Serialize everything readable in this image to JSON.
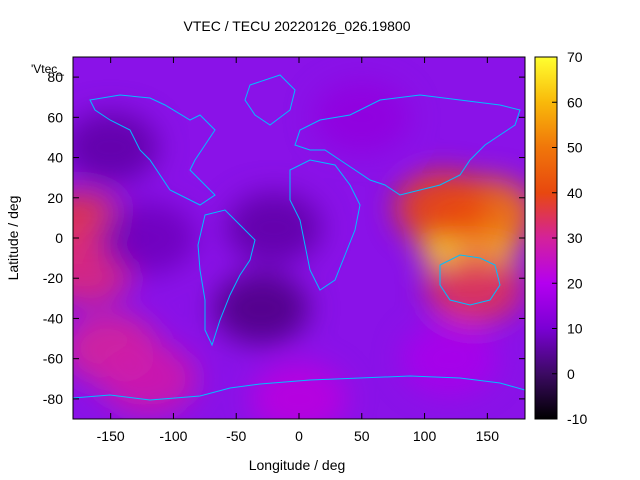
{
  "chart_data": {
    "type": "heatmap",
    "title": "VTEC / TECU 20220126_026.19800",
    "xlabel": "Longitude / deg",
    "ylabel": "Latitude / deg",
    "series_label": "'Vtec_",
    "xlim": [
      -180,
      180
    ],
    "ylim": [
      -90,
      90
    ],
    "x_ticks": [
      -150,
      -100,
      -50,
      0,
      50,
      100,
      150
    ],
    "y_ticks": [
      -80,
      -60,
      -40,
      -20,
      0,
      20,
      40,
      60,
      80
    ],
    "colorbar": {
      "min": -10,
      "max": 70,
      "ticks": [
        -10,
        0,
        10,
        20,
        30,
        40,
        50,
        60,
        70
      ]
    },
    "regions": [
      {
        "lon": 135,
        "lat": -3,
        "value": 68
      },
      {
        "lon": 150,
        "lat": 12,
        "value": 50
      },
      {
        "lon": 115,
        "lat": 15,
        "value": 40
      },
      {
        "lon": 140,
        "lat": -25,
        "value": 35
      },
      {
        "lon": -175,
        "lat": 5,
        "value": 36
      },
      {
        "lon": -170,
        "lat": -15,
        "value": 32
      },
      {
        "lon": -150,
        "lat": -55,
        "value": 30
      },
      {
        "lon": -120,
        "lat": -70,
        "value": 28
      },
      {
        "lon": -30,
        "lat": -35,
        "value": 3
      },
      {
        "lon": -20,
        "lat": 5,
        "value": 6
      },
      {
        "lon": -120,
        "lat": 0,
        "value": 8
      },
      {
        "lon": -150,
        "lat": 45,
        "value": 6
      },
      {
        "lon": 50,
        "lat": 60,
        "value": 14
      },
      {
        "lon": 120,
        "lat": -60,
        "value": 18
      },
      {
        "lon": 0,
        "lat": -80,
        "value": 22
      }
    ]
  }
}
